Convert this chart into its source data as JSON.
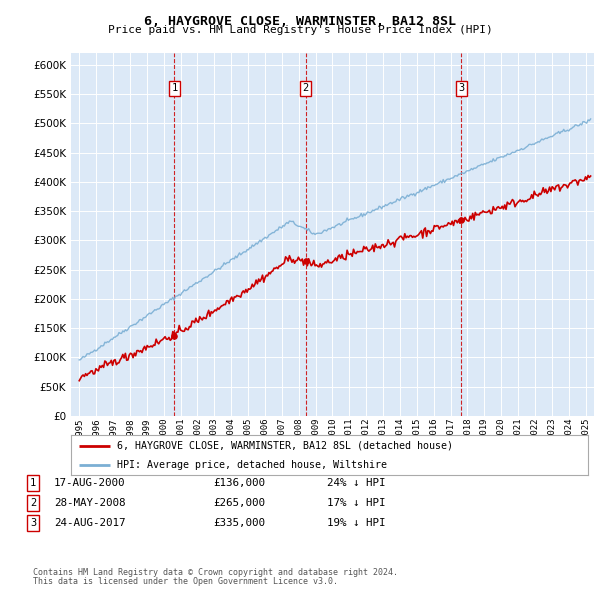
{
  "title": "6, HAYGROVE CLOSE, WARMINSTER, BA12 8SL",
  "subtitle": "Price paid vs. HM Land Registry's House Price Index (HPI)",
  "background_color": "#dce9f7",
  "plot_bg_color": "#dce9f7",
  "grid_color": "#ffffff",
  "red_line_color": "#cc0000",
  "blue_line_color": "#7bafd4",
  "sale_events": [
    {
      "num": 1,
      "date": "17-AUG-2000",
      "price": 136000,
      "hpi_rel": "24% ↓ HPI",
      "x_year": 2000.64
    },
    {
      "num": 2,
      "date": "28-MAY-2008",
      "price": 265000,
      "hpi_rel": "17% ↓ HPI",
      "x_year": 2008.41
    },
    {
      "num": 3,
      "date": "24-AUG-2017",
      "price": 335000,
      "hpi_rel": "19% ↓ HPI",
      "x_year": 2017.64
    }
  ],
  "legend_red_label": "6, HAYGROVE CLOSE, WARMINSTER, BA12 8SL (detached house)",
  "legend_blue_label": "HPI: Average price, detached house, Wiltshire",
  "footer_line1": "Contains HM Land Registry data © Crown copyright and database right 2024.",
  "footer_line2": "This data is licensed under the Open Government Licence v3.0.",
  "ylim": [
    0,
    620000
  ],
  "xlim": [
    1994.5,
    2025.5
  ],
  "yticks": [
    0,
    50000,
    100000,
    150000,
    200000,
    250000,
    300000,
    350000,
    400000,
    450000,
    500000,
    550000,
    600000
  ]
}
